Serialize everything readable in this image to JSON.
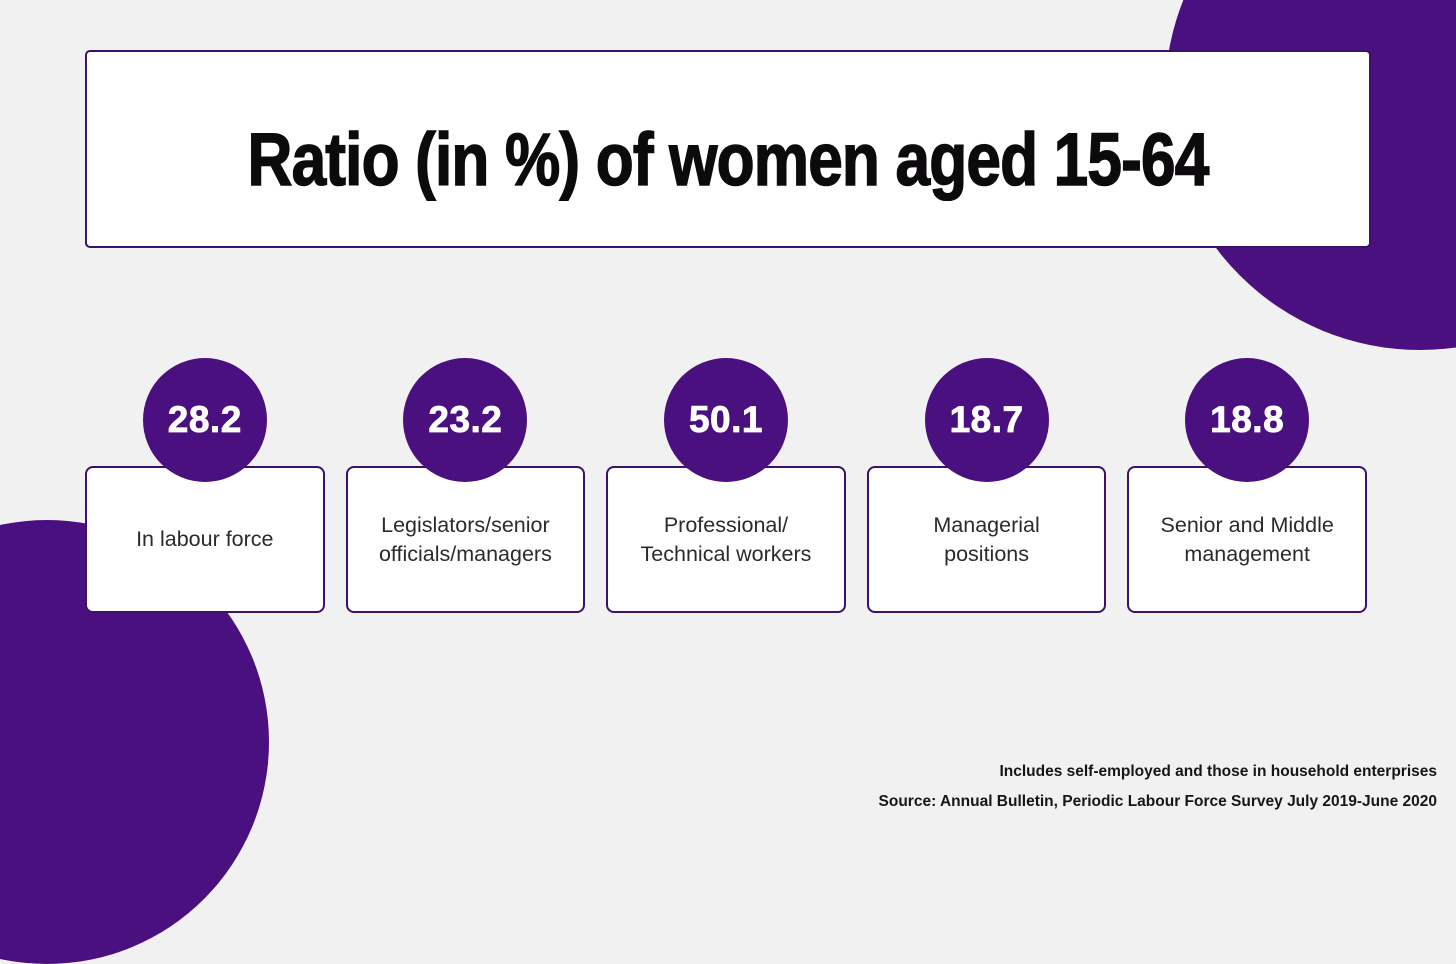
{
  "title": "Ratio (in %) of women aged 15-64",
  "cards": [
    {
      "value": "28.2",
      "lines": [
        "In labour force"
      ]
    },
    {
      "value": "23.2",
      "lines": [
        "Legislators/senior",
        "officials/managers"
      ]
    },
    {
      "value": "50.1",
      "lines": [
        "Professional/",
        "Technical workers"
      ]
    },
    {
      "value": "18.7",
      "lines": [
        "Managerial",
        "positions"
      ]
    },
    {
      "value": "18.8",
      "lines": [
        "Senior and Middle",
        "management"
      ]
    }
  ],
  "footer": {
    "note": "Includes self-employed and those in household enterprises",
    "source": "Source: Annual Bulletin, Periodic Labour Force Survey July 2019-June 2020"
  },
  "colors": {
    "purple": "#4a1080",
    "border": "#3c1168",
    "background": "#f2f1f1"
  },
  "chart_data": {
    "type": "table",
    "title": "Ratio (in %) of women aged 15-64",
    "categories": [
      "In labour force",
      "Legislators/senior officials/managers",
      "Professional/Technical workers",
      "Managerial positions",
      "Senior and Middle management"
    ],
    "values": [
      28.2,
      23.2,
      50.1,
      18.7,
      18.8
    ],
    "unit": "percent",
    "annotations": [
      "Includes self-employed and those in household enterprises",
      "Source: Annual Bulletin, Periodic Labour Force Survey July 2019-June 2020"
    ],
    "legend_position": "none",
    "grid": false
  }
}
